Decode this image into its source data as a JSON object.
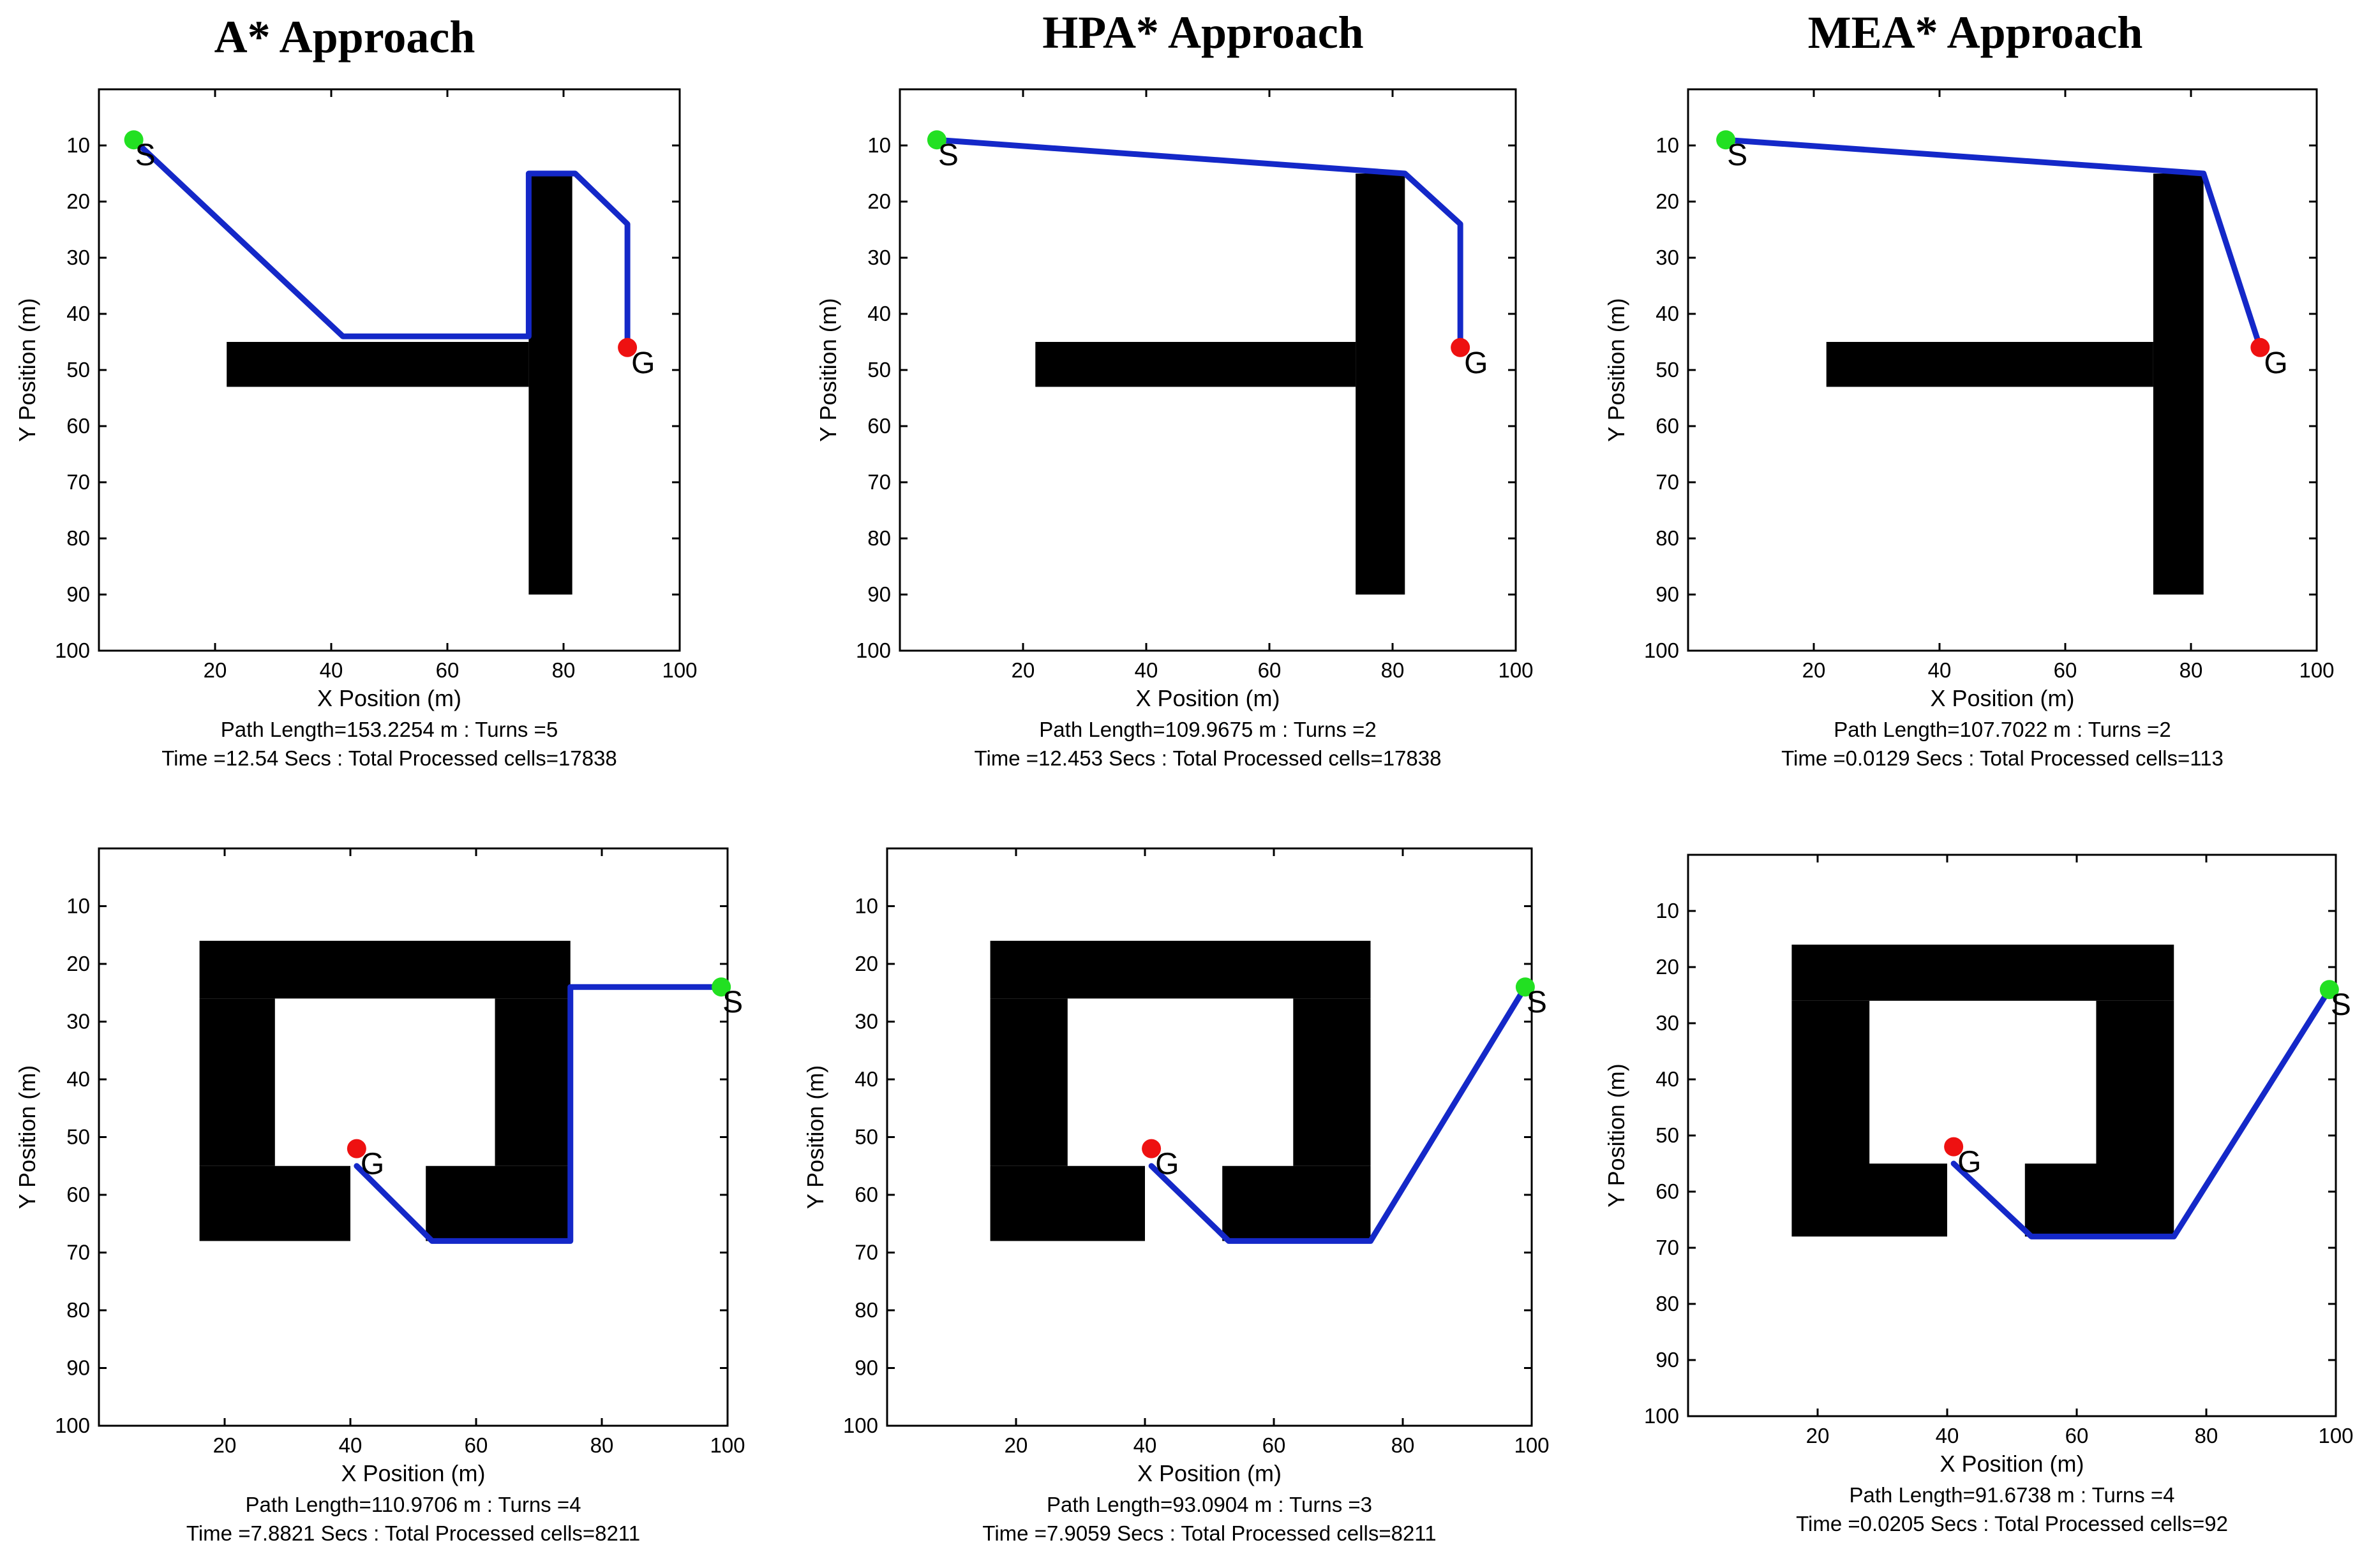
{
  "colors": {
    "path": "#1428c8",
    "obstacle": "#000000",
    "start": "#22e022",
    "goal": "#ee1111"
  },
  "column_titles": [
    "A* Approach",
    "HPA* Approach",
    "MEA* Approach"
  ],
  "chart_data": [
    {
      "type": "scatter",
      "xlabel": "X Position (m)",
      "ylabel": "Y Position (m)",
      "xticks": [
        20,
        40,
        60,
        80,
        100
      ],
      "yticks": [
        10,
        20,
        30,
        40,
        50,
        60,
        70,
        80,
        90,
        100
      ],
      "xlim": [
        0,
        100
      ],
      "ylim": [
        0,
        100
      ],
      "obstacles": [
        [
          22,
          45,
          52,
          8
        ],
        [
          74,
          15,
          7.5,
          75
        ]
      ],
      "path": [
        [
          6,
          9
        ],
        [
          42,
          44
        ],
        [
          74,
          44
        ],
        [
          74,
          15
        ],
        [
          82,
          15
        ],
        [
          91,
          24
        ],
        [
          91,
          46
        ]
      ],
      "start": {
        "label": "S",
        "x": 6,
        "y": 9
      },
      "goal": {
        "label": "G",
        "x": 91,
        "y": 46
      },
      "caption_line1": "Path Length=153.2254 m : Turns =5",
      "caption_line2": "Time =12.54 Secs : Total Processed cells=17838"
    },
    {
      "type": "scatter",
      "xlabel": "X Position (m)",
      "ylabel": "Y Position (m)",
      "xticks": [
        20,
        40,
        60,
        80,
        100
      ],
      "yticks": [
        10,
        20,
        30,
        40,
        50,
        60,
        70,
        80,
        90,
        100
      ],
      "xlim": [
        0,
        100
      ],
      "ylim": [
        0,
        100
      ],
      "obstacles": [
        [
          22,
          45,
          52,
          8
        ],
        [
          74,
          15,
          8,
          75
        ]
      ],
      "path": [
        [
          6,
          9
        ],
        [
          82,
          15
        ],
        [
          91,
          24
        ],
        [
          91,
          46
        ]
      ],
      "start": {
        "label": "S",
        "x": 6,
        "y": 9
      },
      "goal": {
        "label": "G",
        "x": 91,
        "y": 46
      },
      "caption_line1": "Path Length=109.9675 m : Turns =2",
      "caption_line2": "Time =12.453 Secs : Total Processed cells=17838"
    },
    {
      "type": "scatter",
      "xlabel": "X Position (m)",
      "ylabel": "Y Position (m)",
      "xticks": [
        20,
        40,
        60,
        80,
        100
      ],
      "yticks": [
        10,
        20,
        30,
        40,
        50,
        60,
        70,
        80,
        90,
        100
      ],
      "xlim": [
        0,
        100
      ],
      "ylim": [
        0,
        100
      ],
      "obstacles": [
        [
          22,
          45,
          52,
          8
        ],
        [
          74,
          15,
          8,
          75
        ]
      ],
      "path": [
        [
          6,
          9
        ],
        [
          82,
          15
        ],
        [
          91,
          46
        ]
      ],
      "start": {
        "label": "S",
        "x": 6,
        "y": 9
      },
      "goal": {
        "label": "G",
        "x": 91,
        "y": 46
      },
      "caption_line1": "Path Length=107.7022 m : Turns =2",
      "caption_line2": "Time =0.0129 Secs : Total Processed cells=113"
    },
    {
      "type": "scatter",
      "xlabel": "X Position (m)",
      "ylabel": "Y Position (m)",
      "xticks": [
        20,
        40,
        60,
        80,
        100
      ],
      "yticks": [
        10,
        20,
        30,
        40,
        50,
        60,
        70,
        80,
        90,
        100
      ],
      "xlim": [
        0,
        100
      ],
      "ylim": [
        0,
        100
      ],
      "obstacles": [
        [
          16,
          16,
          59,
          10
        ],
        [
          16,
          26,
          12,
          29
        ],
        [
          16,
          55,
          24,
          13
        ],
        [
          63,
          26,
          12,
          29
        ],
        [
          52,
          55,
          23,
          13
        ]
      ],
      "path": [
        [
          99,
          24
        ],
        [
          75,
          24
        ],
        [
          75,
          68
        ],
        [
          53,
          68
        ],
        [
          41,
          55
        ]
      ],
      "start": {
        "label": "S",
        "x": 99,
        "y": 24
      },
      "goal": {
        "label": "G",
        "x": 41,
        "y": 52
      },
      "caption_line1": "Path Length=110.9706 m : Turns =4",
      "caption_line2": "Time =7.8821 Secs : Total Processed cells=8211"
    },
    {
      "type": "scatter",
      "xlabel": "X Position (m)",
      "ylabel": "Y Position (m)",
      "xticks": [
        20,
        40,
        60,
        80,
        100
      ],
      "yticks": [
        10,
        20,
        30,
        40,
        50,
        60,
        70,
        80,
        90,
        100
      ],
      "xlim": [
        0,
        100
      ],
      "ylim": [
        0,
        100
      ],
      "obstacles": [
        [
          16,
          16,
          59,
          10
        ],
        [
          16,
          26,
          12,
          29
        ],
        [
          16,
          55,
          24,
          13
        ],
        [
          63,
          26,
          12,
          29
        ],
        [
          52,
          55,
          23,
          13
        ]
      ],
      "path": [
        [
          99,
          24
        ],
        [
          75,
          68
        ],
        [
          53,
          68
        ],
        [
          41,
          55
        ]
      ],
      "start": {
        "label": "S",
        "x": 99,
        "y": 24
      },
      "goal": {
        "label": "G",
        "x": 41,
        "y": 52
      },
      "caption_line1": "Path Length=93.0904 m : Turns =3",
      "caption_line2": "Time =7.9059 Secs : Total Processed cells=8211"
    },
    {
      "type": "scatter",
      "xlabel": "X Position (m)",
      "ylabel": "Y Position (m)",
      "xticks": [
        20,
        40,
        60,
        80,
        100
      ],
      "yticks": [
        10,
        20,
        30,
        40,
        50,
        60,
        70,
        80,
        90,
        100
      ],
      "xlim": [
        0,
        100
      ],
      "ylim": [
        0,
        100
      ],
      "obstacles": [
        [
          16,
          16,
          59,
          10
        ],
        [
          16,
          26,
          12,
          29
        ],
        [
          16,
          55,
          24,
          13
        ],
        [
          63,
          26,
          12,
          29
        ],
        [
          52,
          55,
          23,
          13
        ]
      ],
      "path": [
        [
          99,
          24
        ],
        [
          75,
          68
        ],
        [
          53,
          68
        ],
        [
          41,
          55
        ]
      ],
      "start": {
        "label": "S",
        "x": 99,
        "y": 24
      },
      "goal": {
        "label": "G",
        "x": 41,
        "y": 52
      },
      "caption_line1": "Path Length=91.6738 m : Turns =4",
      "caption_line2": "Time =0.0205 Secs : Total Processed cells=92"
    }
  ]
}
